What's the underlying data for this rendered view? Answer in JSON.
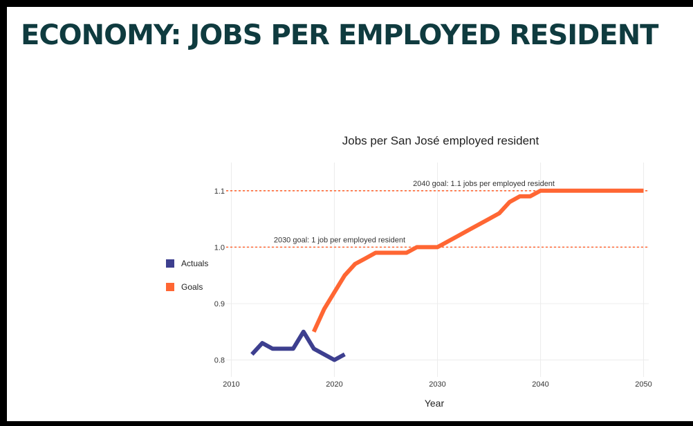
{
  "slide": {
    "title": "ECONOMY: JOBS PER EMPLOYED RESIDENT"
  },
  "chart_data": {
    "type": "line",
    "title": "Jobs per San José employed resident",
    "xlabel": "Year",
    "ylabel": "",
    "xlim": [
      2009.5,
      2050.5
    ],
    "ylim": [
      0.77,
      1.15
    ],
    "x_ticks": [
      2010,
      2020,
      2030,
      2040,
      2050
    ],
    "x_tick_labels": [
      "2010",
      "2020",
      "2030",
      "2040",
      "2050"
    ],
    "y_ticks": [
      0.8,
      0.9,
      1.0,
      1.1
    ],
    "y_tick_labels": [
      "0.8",
      "0.9",
      "1.0",
      "1.1"
    ],
    "grid": true,
    "legend_position": "left",
    "series": [
      {
        "name": "Actuals",
        "color": "#3d3f8f",
        "points": [
          {
            "x": 2012,
            "y": 0.81
          },
          {
            "x": 2013,
            "y": 0.83
          },
          {
            "x": 2014,
            "y": 0.82
          },
          {
            "x": 2015,
            "y": 0.82
          },
          {
            "x": 2016,
            "y": 0.82
          },
          {
            "x": 2017,
            "y": 0.85
          },
          {
            "x": 2018,
            "y": 0.82
          },
          {
            "x": 2019,
            "y": 0.81
          },
          {
            "x": 2020,
            "y": 0.8
          },
          {
            "x": 2021,
            "y": 0.81
          }
        ]
      },
      {
        "name": "Goals",
        "color": "#ff6633",
        "points": [
          {
            "x": 2018,
            "y": 0.85
          },
          {
            "x": 2019,
            "y": 0.89
          },
          {
            "x": 2020,
            "y": 0.92
          },
          {
            "x": 2021,
            "y": 0.95
          },
          {
            "x": 2022,
            "y": 0.97
          },
          {
            "x": 2023,
            "y": 0.98
          },
          {
            "x": 2024,
            "y": 0.99
          },
          {
            "x": 2025,
            "y": 0.99
          },
          {
            "x": 2026,
            "y": 0.99
          },
          {
            "x": 2027,
            "y": 0.99
          },
          {
            "x": 2028,
            "y": 1.0
          },
          {
            "x": 2029,
            "y": 1.0
          },
          {
            "x": 2030,
            "y": 1.0
          },
          {
            "x": 2031,
            "y": 1.01
          },
          {
            "x": 2032,
            "y": 1.02
          },
          {
            "x": 2033,
            "y": 1.03
          },
          {
            "x": 2034,
            "y": 1.04
          },
          {
            "x": 2035,
            "y": 1.05
          },
          {
            "x": 2036,
            "y": 1.06
          },
          {
            "x": 2037,
            "y": 1.08
          },
          {
            "x": 2038,
            "y": 1.09
          },
          {
            "x": 2039,
            "y": 1.09
          },
          {
            "x": 2040,
            "y": 1.1
          },
          {
            "x": 2045,
            "y": 1.1
          },
          {
            "x": 2050,
            "y": 1.1
          }
        ]
      }
    ],
    "reference_lines": [
      {
        "y": 1.1,
        "label": "2040 goal: 1.1 jobs per employed resident",
        "color": "#ff6633"
      },
      {
        "y": 1.0,
        "label": "2030 goal: 1 job per employed resident",
        "color": "#ff6633"
      }
    ]
  }
}
